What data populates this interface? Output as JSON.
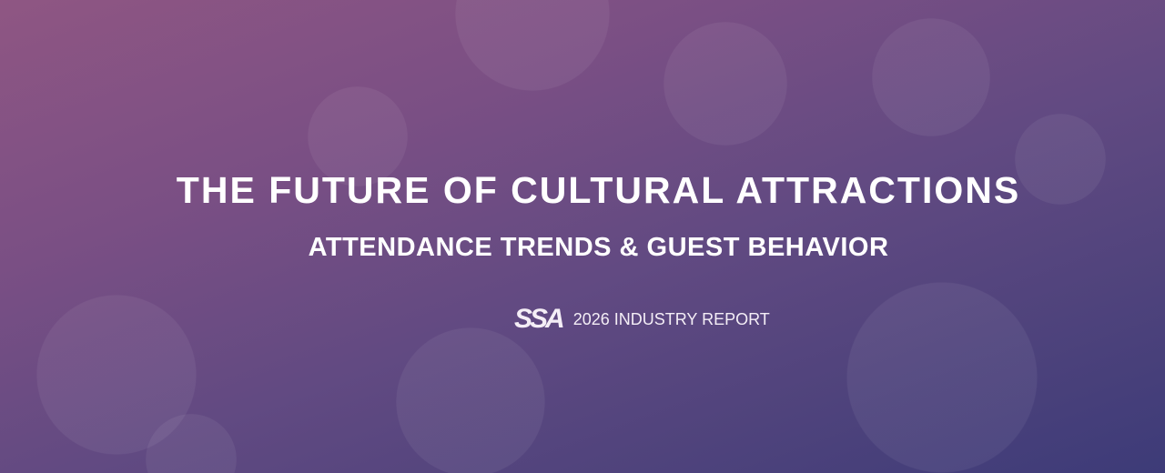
{
  "title": "THE FUTURE OF CULTURAL ATTRACTIONS",
  "subtitle": "ATTENDANCE TRENDS & GUEST BEHAVIOR",
  "logo": "SSA",
  "report_label": "2026 INDUSTRY REPORT",
  "colors": {
    "gradient_start": "#8f5683",
    "gradient_end": "#3d3b78",
    "text": "#ffffff"
  }
}
